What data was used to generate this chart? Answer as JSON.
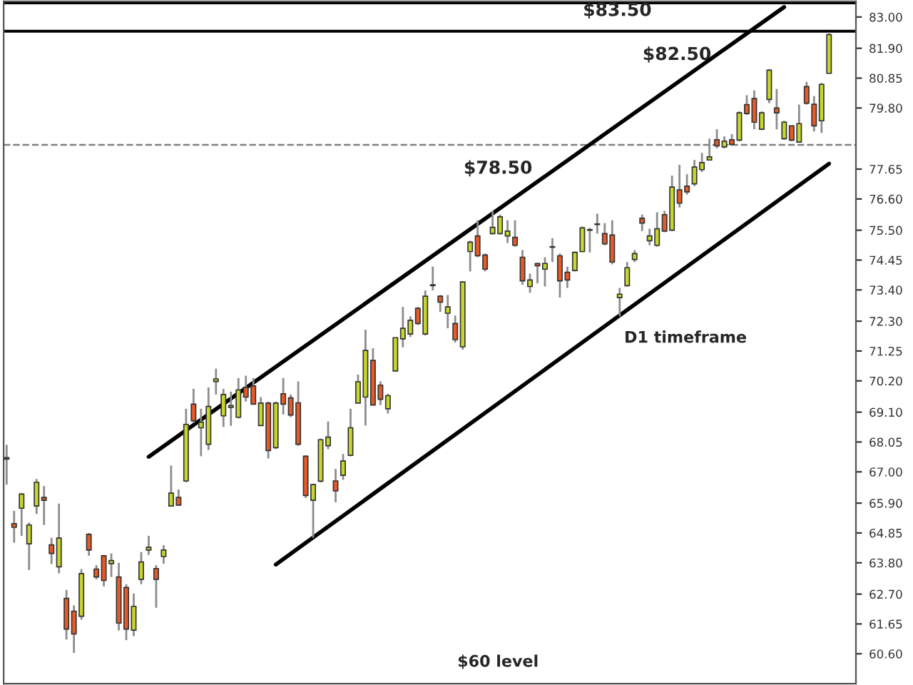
{
  "chart_data": {
    "type": "candlestick",
    "categories": [
      null,
      null,
      null,
      null,
      null,
      null,
      null,
      null,
      null,
      null,
      null,
      null,
      null,
      null,
      null,
      null,
      null,
      null,
      null,
      null,
      null,
      null,
      null,
      null,
      null,
      null,
      null,
      null,
      null,
      null,
      null,
      null,
      null,
      null,
      null,
      null,
      null,
      null,
      null,
      null,
      null,
      null,
      null,
      null,
      null,
      null,
      null,
      null,
      null,
      null,
      null,
      null,
      null,
      null,
      null,
      null,
      null,
      null,
      null,
      null,
      null,
      null,
      null,
      null,
      null,
      null,
      null,
      null,
      null,
      null,
      null,
      null,
      null,
      null,
      null,
      null,
      null,
      null,
      null,
      null,
      null,
      null,
      null,
      null,
      null,
      null,
      null,
      null,
      null,
      null,
      null,
      null,
      null,
      null,
      null,
      null,
      null,
      null,
      null,
      null,
      null,
      null,
      null,
      null,
      null,
      null,
      null,
      null,
      null,
      null,
      null
    ],
    "series": [
      {
        "colors": [
          "#e85a28",
          "#e85a28",
          "#c6d62c",
          "#c6d62c",
          "#c6d62c",
          "#e85a28",
          "#e85a28",
          "#c6d62c",
          "#e85a28",
          "#e85a28",
          "#c6d62c",
          "#e85a28",
          "#e85a28",
          "#e85a28",
          "#c6d62c",
          "#e85a28",
          "#e85a28",
          "#c6d62c",
          "#c6d62c",
          "#c6d62c",
          "#e85a28",
          "#c6d62c",
          "#c6d62c",
          "#e85a28",
          "#c6d62c",
          "#e85a28",
          "#c6d62c",
          "#c6d62c",
          "#c6d62c",
          "#c6d62c",
          "#c6d62c",
          "#c6d62c",
          "#e85a28",
          "#e85a28",
          "#c6d62c",
          "#e85a28",
          "#c6d62c",
          "#e85a28",
          "#e85a28",
          "#e85a28",
          "#e85a28",
          "#c6d62c",
          "#c6d62c",
          "#c6d62c",
          "#e85a28",
          "#c6d62c",
          "#c6d62c",
          "#c6d62c",
          "#c6d62c",
          "#e85a28",
          "#e85a28",
          "#c6d62c",
          "#c6d62c",
          "#c6d62c",
          "#c6d62c",
          "#e85a28",
          "#c6d62c",
          "#c6d62c",
          "#e85a28",
          "#c6d62c",
          "#e85a28",
          "#c6d62c",
          "#c6d62c",
          "#e85a28",
          "#e85a28",
          "#c6d62c",
          "#c6d62c",
          "#c6d62c",
          "#e85a28",
          "#e85a28",
          "#c6d62c",
          "#e85a28",
          "#c6d62c",
          "#c6d62c",
          "#e85a28",
          "#e85a28",
          "#c6d62c",
          "#c6d62c",
          "#c6d62c",
          "#c6d62c",
          "#e85a28",
          "#e85a28",
          "#c6d62c",
          "#c6d62c",
          "#c6d62c",
          "#e85a28",
          "#c6d62c",
          "#c6d62c",
          "#e85a28",
          "#c6d62c",
          "#e85a28",
          "#e85a28",
          "#c6d62c",
          "#c6d62c",
          "#c6d62c",
          "#e85a28",
          "#c6d62c",
          "#e85a28",
          "#c6d62c",
          "#e85a28",
          "#e85a28",
          "#c6d62c",
          "#c6d62c",
          "#e85a28",
          "#c6d62c",
          "#e85a28",
          "#c6d62c",
          "#e85a28",
          "#e85a28",
          "#c6d62c",
          "#c6d62c"
        ],
        "ohlc": [
          [
            67.5,
            67.95,
            66.55,
            67.45
          ],
          [
            65.18,
            65.63,
            64.51,
            65.05
          ],
          [
            65.72,
            66.25,
            64.75,
            66.22
          ],
          [
            64.47,
            65.22,
            63.55,
            65.13
          ],
          [
            65.8,
            66.75,
            65.52,
            66.63
          ],
          [
            66.1,
            66.5,
            65.13,
            66.0
          ],
          [
            64.43,
            64.68,
            63.76,
            64.13
          ],
          [
            63.66,
            65.88,
            63.43,
            64.67
          ],
          [
            62.55,
            62.85,
            61.1,
            61.47
          ],
          [
            62.1,
            62.3,
            60.63,
            61.3
          ],
          [
            61.92,
            63.58,
            61.8,
            63.42
          ],
          [
            64.8,
            64.85,
            64.05,
            64.25
          ],
          [
            63.58,
            63.72,
            63.22,
            63.3
          ],
          [
            64.05,
            64.08,
            62.97,
            63.18
          ],
          [
            63.77,
            64.13,
            63.3,
            63.88
          ],
          [
            63.3,
            63.8,
            61.42,
            61.68
          ],
          [
            62.93,
            63.05,
            61.08,
            61.47
          ],
          [
            61.43,
            62.72,
            61.22,
            62.27
          ],
          [
            63.22,
            64.18,
            63.05,
            63.83
          ],
          [
            64.25,
            64.75,
            64.08,
            64.35
          ],
          [
            63.6,
            63.72,
            62.22,
            63.22
          ],
          [
            64.02,
            64.42,
            63.77,
            64.25
          ],
          [
            65.8,
            67.22,
            65.8,
            66.25
          ],
          [
            66.1,
            66.38,
            65.8,
            65.83
          ],
          [
            66.68,
            69.22,
            66.63,
            68.67
          ],
          [
            69.38,
            69.92,
            68.72,
            68.8
          ],
          [
            68.55,
            69.22,
            67.55,
            68.75
          ],
          [
            67.97,
            69.97,
            67.77,
            69.3
          ],
          [
            70.18,
            70.63,
            69.72,
            70.27
          ],
          [
            68.97,
            69.92,
            68.58,
            69.72
          ],
          [
            69.27,
            69.82,
            68.62,
            69.33
          ],
          [
            68.92,
            70.3,
            68.88,
            69.88
          ],
          [
            69.97,
            70.38,
            69.47,
            69.63
          ],
          [
            70.02,
            70.3,
            69.38,
            69.38
          ],
          [
            68.63,
            69.63,
            68.63,
            69.42
          ],
          [
            69.42,
            69.47,
            67.47,
            67.75
          ],
          [
            67.85,
            69.47,
            67.8,
            69.42
          ],
          [
            69.75,
            70.3,
            69.02,
            69.38
          ],
          [
            69.6,
            69.72,
            68.93,
            69.0
          ],
          [
            69.43,
            70.18,
            67.92,
            67.97
          ],
          [
            67.55,
            67.58,
            66.08,
            66.17
          ],
          [
            66.0,
            66.58,
            64.68,
            66.55
          ],
          [
            66.67,
            68.17,
            66.63,
            68.13
          ],
          [
            67.92,
            68.77,
            67.8,
            68.22
          ],
          [
            66.68,
            67.1,
            65.93,
            66.33
          ],
          [
            66.88,
            67.63,
            66.72,
            67.38
          ],
          [
            67.58,
            69.22,
            67.55,
            68.55
          ],
          [
            69.42,
            70.42,
            69.42,
            70.17
          ],
          [
            69.63,
            72.0,
            68.63,
            71.27
          ],
          [
            70.92,
            71.35,
            69.35,
            69.35
          ],
          [
            70.05,
            70.18,
            69.35,
            69.55
          ],
          [
            69.22,
            69.75,
            69.05,
            69.68
          ],
          [
            70.55,
            71.72,
            70.52,
            71.72
          ],
          [
            71.68,
            72.8,
            71.38,
            72.05
          ],
          [
            71.85,
            72.47,
            71.75,
            72.33
          ],
          [
            72.75,
            72.8,
            72.17,
            72.22
          ],
          [
            71.85,
            73.38,
            71.8,
            73.18
          ],
          [
            73.55,
            74.22,
            73.38,
            73.58
          ],
          [
            73.18,
            73.22,
            72.63,
            72.97
          ],
          [
            72.58,
            73.22,
            72.05,
            72.8
          ],
          [
            72.22,
            72.5,
            71.55,
            71.65
          ],
          [
            71.4,
            73.7,
            71.3,
            73.68
          ],
          [
            74.75,
            75.13,
            74.05,
            75.08
          ],
          [
            75.3,
            75.85,
            74.55,
            74.6
          ],
          [
            74.63,
            74.68,
            74.05,
            74.13
          ],
          [
            75.38,
            76.18,
            75.35,
            75.6
          ],
          [
            75.38,
            76.05,
            75.35,
            75.97
          ],
          [
            75.3,
            75.85,
            75.05,
            75.47
          ],
          [
            75.25,
            75.85,
            74.92,
            74.97
          ],
          [
            74.55,
            74.8,
            73.58,
            73.72
          ],
          [
            73.52,
            73.97,
            73.3,
            73.75
          ],
          [
            74.33,
            74.35,
            73.63,
            74.25
          ],
          [
            74.13,
            74.55,
            73.52,
            74.33
          ],
          [
            74.9,
            75.22,
            74.38,
            74.92
          ],
          [
            74.6,
            74.68,
            73.13,
            73.72
          ],
          [
            74.02,
            74.22,
            73.47,
            73.75
          ],
          [
            74.08,
            74.75,
            74.05,
            74.72
          ],
          [
            74.75,
            75.63,
            74.72,
            75.58
          ],
          [
            75.5,
            75.58,
            74.72,
            75.52
          ],
          [
            75.7,
            76.08,
            75.38,
            75.72
          ],
          [
            75.38,
            75.75,
            74.97,
            75.02
          ],
          [
            75.33,
            75.85,
            74.3,
            74.38
          ],
          [
            73.13,
            73.47,
            72.47,
            73.25
          ],
          [
            73.55,
            74.38,
            73.52,
            74.18
          ],
          [
            74.47,
            74.8,
            74.38,
            74.68
          ],
          [
            75.92,
            76.05,
            75.47,
            75.75
          ],
          [
            75.13,
            75.55,
            74.97,
            75.3
          ],
          [
            74.97,
            76.13,
            74.92,
            75.55
          ],
          [
            76.05,
            76.18,
            75.43,
            75.47
          ],
          [
            75.5,
            77.42,
            75.47,
            77.02
          ],
          [
            76.92,
            77.8,
            76.3,
            76.45
          ],
          [
            77.05,
            77.47,
            76.75,
            76.85
          ],
          [
            77.13,
            77.97,
            77.05,
            77.72
          ],
          [
            77.63,
            78.22,
            77.55,
            77.88
          ],
          [
            77.97,
            78.72,
            77.97,
            78.08
          ],
          [
            78.68,
            79.05,
            78.38,
            78.47
          ],
          [
            78.43,
            78.8,
            78.38,
            78.63
          ],
          [
            78.68,
            78.88,
            78.47,
            78.52
          ],
          [
            78.67,
            79.68,
            78.63,
            79.63
          ],
          [
            79.92,
            80.25,
            79.55,
            79.6
          ],
          [
            80.13,
            80.42,
            79.05,
            79.3
          ],
          [
            79.05,
            79.68,
            79.02,
            79.63
          ],
          [
            80.1,
            81.17,
            79.97,
            81.13
          ],
          [
            79.8,
            80.47,
            79.05,
            79.63
          ],
          [
            78.72,
            79.35,
            78.68,
            79.3
          ],
          [
            79.17,
            79.18,
            78.63,
            78.67
          ],
          [
            78.6,
            79.92,
            78.58,
            79.25
          ],
          [
            80.55,
            80.72,
            79.92,
            79.97
          ],
          [
            79.93,
            80.22,
            78.97,
            79.17
          ],
          [
            79.35,
            80.68,
            78.92,
            80.63
          ],
          [
            81.02,
            82.47,
            81.02,
            82.38
          ]
        ]
      },
      {
        "type": "line",
        "color": "#000000",
        "values": [
          null,
          null,
          null,
          null,
          null,
          null,
          null,
          null,
          null,
          null,
          null,
          null,
          null,
          null,
          null,
          null,
          null,
          null,
          null,
          67.53,
          null,
          null,
          null,
          null,
          null,
          null,
          null,
          null,
          null,
          null,
          null,
          null,
          null,
          null,
          null,
          null,
          null,
          null,
          null,
          null,
          null,
          null,
          null,
          null,
          null,
          null,
          null,
          null,
          null,
          null,
          null,
          null,
          null,
          null,
          null,
          null,
          null,
          null,
          null,
          null,
          null,
          null,
          null,
          null,
          null,
          null,
          null,
          null,
          null,
          null,
          null,
          null,
          null,
          null,
          null,
          null,
          null,
          null,
          null,
          null,
          null,
          null,
          null,
          null,
          null,
          null,
          null,
          null,
          null,
          null,
          null,
          null,
          null,
          null,
          null,
          null,
          null,
          null,
          null,
          null,
          null,
          null,
          null,
          null,
          83.35,
          null,
          null,
          null,
          null,
          null,
          null
        ]
      },
      {
        "type": "line",
        "color": "#000000",
        "values": [
          null,
          null,
          null,
          null,
          null,
          null,
          null,
          null,
          null,
          null,
          null,
          null,
          null,
          null,
          null,
          null,
          null,
          null,
          null,
          null,
          null,
          null,
          null,
          null,
          null,
          null,
          null,
          null,
          null,
          null,
          null,
          null,
          null,
          null,
          null,
          null,
          63.74,
          null,
          null,
          null,
          null,
          null,
          null,
          null,
          null,
          null,
          null,
          null,
          null,
          null,
          null,
          null,
          null,
          null,
          null,
          null,
          null,
          null,
          null,
          null,
          null,
          null,
          null,
          null,
          null,
          null,
          null,
          null,
          null,
          null,
          null,
          null,
          null,
          null,
          null,
          null,
          null,
          null,
          null,
          null,
          null,
          null,
          null,
          null,
          null,
          null,
          null,
          null,
          null,
          null,
          null,
          null,
          null,
          null,
          null,
          null,
          null,
          null,
          null,
          null,
          null,
          null,
          null,
          null,
          null,
          null,
          null,
          null,
          null,
          null,
          77.84
        ]
      }
    ],
    "ylim": [
      59.55,
      83.55
    ],
    "yticks": [
      {
        "value": 60.6,
        "label": "60.60"
      },
      {
        "value": 61.65,
        "label": "61.65"
      },
      {
        "value": 62.7,
        "label": "62.70"
      },
      {
        "value": 63.8,
        "label": "63.80"
      },
      {
        "value": 64.85,
        "label": "64.85"
      },
      {
        "value": 65.9,
        "label": "65.90"
      },
      {
        "value": 67.0,
        "label": "67.00"
      },
      {
        "value": 68.05,
        "label": "68.05"
      },
      {
        "value": 69.1,
        "label": "69.10"
      },
      {
        "value": 70.2,
        "label": "70.20"
      },
      {
        "value": 71.25,
        "label": "71.25"
      },
      {
        "value": 72.3,
        "label": "72.30"
      },
      {
        "value": 73.4,
        "label": "73.40"
      },
      {
        "value": 74.45,
        "label": "74.45"
      },
      {
        "value": 75.5,
        "label": "75.50"
      },
      {
        "value": 76.6,
        "label": "76.60"
      },
      {
        "value": 77.65,
        "label": "77.65"
      },
      {
        "value": 79.8,
        "label": "79.80"
      },
      {
        "value": 80.85,
        "label": "80.85"
      },
      {
        "value": 81.9,
        "label": "81.90"
      },
      {
        "value": 83.0,
        "label": "83.00"
      }
    ],
    "tick_labels": "y",
    "grid": false,
    "ref_lines": [
      {
        "axis": "y",
        "value": 83.5,
        "label": "$83.50",
        "color": "#000000",
        "line_style": "solid"
      },
      {
        "axis": "y",
        "value": 82.5,
        "label": "$82.50",
        "color": "#000000",
        "line_style": "solid"
      },
      {
        "axis": "y",
        "value": 78.5,
        "label": "$78.50",
        "color": "#808080",
        "line_style": "dashed"
      }
    ],
    "annotations": [
      "D1 timeframe",
      "$60 level"
    ]
  }
}
